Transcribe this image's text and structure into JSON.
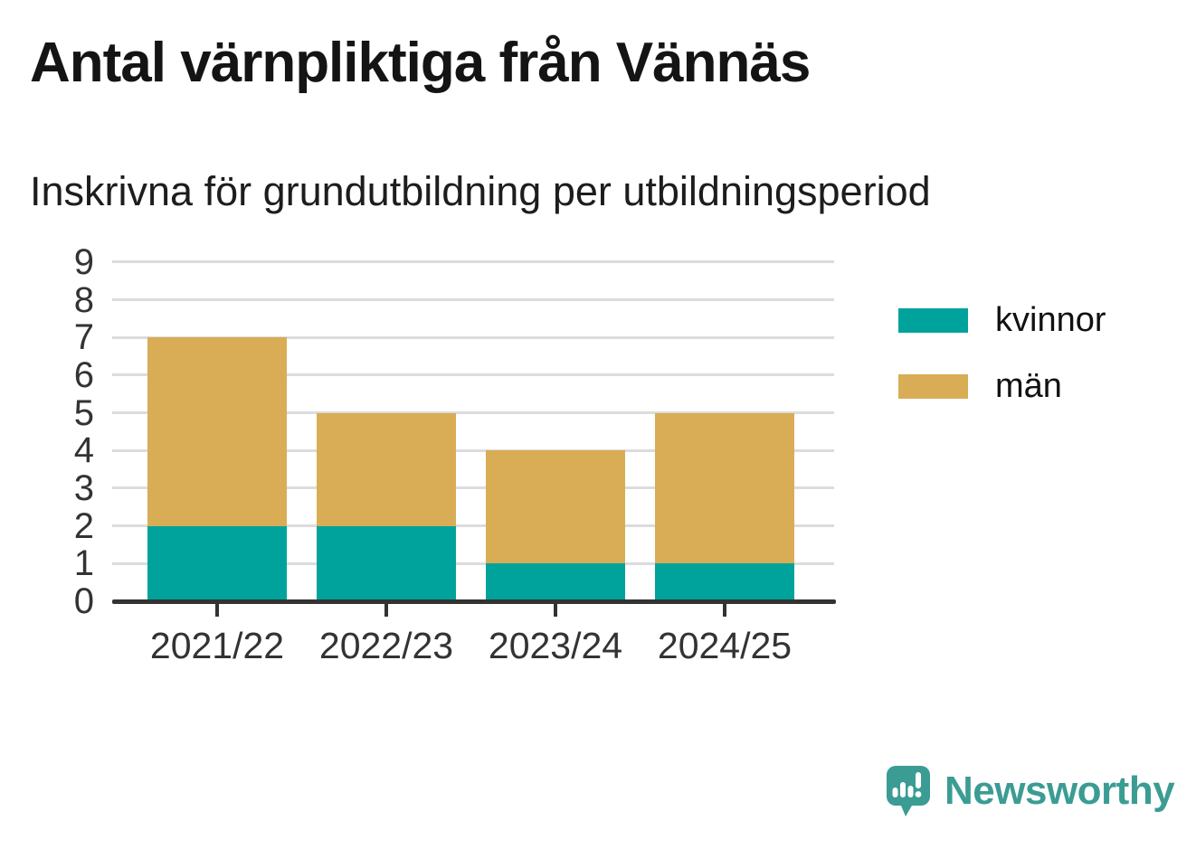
{
  "title": "Antal värnpliktiga från Vännäs",
  "subtitle": "Inskrivna för grundutbildning per utbildningsperiod",
  "chart_data": {
    "type": "bar",
    "stacked": true,
    "categories": [
      "2021/22",
      "2022/23",
      "2023/24",
      "2024/25"
    ],
    "series": [
      {
        "name": "kvinnor",
        "color": "#00a39b",
        "values": [
          2,
          2,
          1,
          1
        ]
      },
      {
        "name": "män",
        "color": "#d9ad55",
        "values": [
          5,
          3,
          3,
          4
        ]
      }
    ],
    "totals": [
      7,
      5,
      4,
      5
    ],
    "xlabel": "",
    "ylabel": "",
    "ylim": [
      0,
      9
    ],
    "yticks": [
      0,
      1,
      2,
      3,
      4,
      5,
      6,
      7,
      8,
      9
    ],
    "grid": true,
    "legend_position": "right"
  },
  "branding": {
    "name": "Newsworthy",
    "color": "#3b9c94",
    "icon": "newsworthy-speech-bubble-bar-chart-icon"
  },
  "colors": {
    "background": "#ffffff",
    "grid": "#dcdcdc",
    "axis": "#333333",
    "title_text": "#141414",
    "tick_text": "#333333"
  }
}
